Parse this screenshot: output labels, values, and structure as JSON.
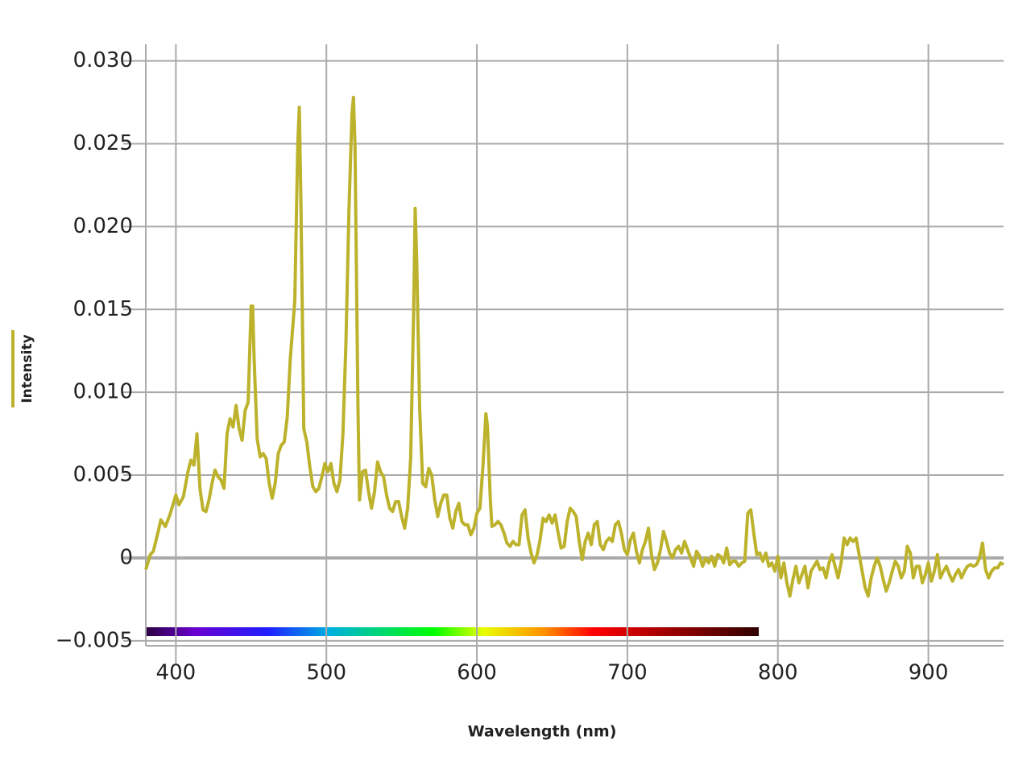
{
  "chart_data": {
    "type": "line",
    "x_label": "Wavelength (nm)",
    "xlim": [
      380,
      950
    ],
    "ylim": [
      -0.0053,
      0.031
    ],
    "xticks": [
      400,
      500,
      600,
      700,
      800,
      900
    ],
    "yticks": [
      {
        "value": -0.005,
        "label": "−0.005"
      },
      0,
      0.005,
      {
        "value": 0.01,
        "label": "0.010"
      },
      0.015,
      {
        "value": 0.02,
        "label": "0.020"
      },
      0.025,
      {
        "value": 0.03,
        "label": "0.030"
      }
    ],
    "grid": true,
    "legend": "left",
    "x": [
      380,
      383,
      385,
      388,
      390,
      393,
      396,
      400,
      402,
      405,
      408,
      410,
      412,
      414,
      416,
      418,
      420,
      422,
      424,
      426,
      428,
      430,
      432,
      434,
      436,
      438,
      440,
      442,
      444,
      446,
      448,
      450,
      451,
      452,
      454,
      456,
      458,
      460,
      462,
      464,
      466,
      468,
      470,
      472,
      474,
      476,
      479,
      481,
      482,
      483,
      485,
      487,
      489,
      491,
      493,
      495,
      497,
      499,
      501,
      503,
      505,
      507,
      509,
      511,
      513,
      515,
      517,
      518,
      519,
      521,
      522,
      524,
      526,
      528,
      530,
      532,
      534,
      536,
      538,
      540,
      542,
      544,
      546,
      548,
      550,
      552,
      554,
      556,
      558,
      559,
      560,
      562,
      564,
      566,
      568,
      570,
      572,
      574,
      576,
      578,
      580,
      582,
      584,
      586,
      588,
      590,
      592,
      594,
      596,
      598,
      600,
      602,
      604,
      606,
      607,
      609,
      610,
      612,
      614,
      616,
      618,
      620,
      622,
      624,
      626,
      628,
      630,
      632,
      634,
      636,
      638,
      640,
      642,
      644,
      646,
      648,
      650,
      652,
      654,
      656,
      658,
      660,
      662,
      664,
      666,
      668,
      670,
      672,
      674,
      676,
      678,
      680,
      682,
      684,
      686,
      688,
      690,
      692,
      694,
      696,
      698,
      700,
      702,
      704,
      706,
      708,
      710,
      712,
      714,
      716,
      718,
      720,
      722,
      724,
      726,
      728,
      730,
      732,
      734,
      736,
      738,
      740,
      742,
      744,
      746,
      748,
      750,
      752,
      754,
      756,
      758,
      760,
      762,
      764,
      766,
      768,
      770,
      772,
      774,
      776,
      778,
      780,
      782,
      784,
      786,
      788,
      790,
      792,
      794,
      796,
      798,
      800,
      802,
      804,
      806,
      808,
      810,
      812,
      814,
      816,
      818,
      820,
      822,
      824,
      826,
      828,
      830,
      832,
      834,
      836,
      838,
      840,
      842,
      844,
      846,
      848,
      850,
      852,
      854,
      856,
      858,
      860,
      862,
      864,
      866,
      868,
      870,
      872,
      874,
      876,
      878,
      880,
      882,
      884,
      886,
      888,
      890,
      892,
      894,
      896,
      898,
      900,
      902,
      904,
      906,
      908,
      910,
      912,
      914,
      916,
      918,
      920,
      922,
      924,
      926,
      928,
      930,
      932,
      934,
      936,
      938,
      940,
      942,
      944,
      946,
      948,
      950
    ],
    "series": [
      {
        "name": "Intensity",
        "color": "#bcb22c",
        "values": [
          -0.0007,
          0.0002,
          0.0004,
          0.0015,
          0.0023,
          0.0019,
          0.0026,
          0.0038,
          0.0032,
          0.0037,
          0.0052,
          0.0059,
          0.0056,
          0.0075,
          0.0042,
          0.0029,
          0.0028,
          0.0035,
          0.0045,
          0.0053,
          0.0049,
          0.0047,
          0.0042,
          0.0075,
          0.0084,
          0.0079,
          0.0092,
          0.0078,
          0.0071,
          0.0089,
          0.0094,
          0.0152,
          0.0152,
          0.012,
          0.0072,
          0.0061,
          0.0063,
          0.006,
          0.0045,
          0.0036,
          0.0045,
          0.0063,
          0.0068,
          0.007,
          0.0085,
          0.012,
          0.0155,
          0.025,
          0.0272,
          0.022,
          0.0078,
          0.007,
          0.0055,
          0.0043,
          0.004,
          0.0042,
          0.0049,
          0.0057,
          0.0052,
          0.0057,
          0.0045,
          0.004,
          0.0047,
          0.0075,
          0.013,
          0.021,
          0.0268,
          0.0278,
          0.025,
          0.009,
          0.0035,
          0.0052,
          0.0053,
          0.004,
          0.003,
          0.004,
          0.0058,
          0.0052,
          0.0049,
          0.0038,
          0.003,
          0.0028,
          0.0034,
          0.0034,
          0.0025,
          0.0018,
          0.003,
          0.006,
          0.015,
          0.0211,
          0.018,
          0.009,
          0.0045,
          0.0043,
          0.0054,
          0.005,
          0.0035,
          0.0025,
          0.0033,
          0.0038,
          0.0038,
          0.0024,
          0.0018,
          0.0028,
          0.0033,
          0.0022,
          0.002,
          0.002,
          0.0014,
          0.0018,
          0.0027,
          0.003,
          0.0055,
          0.0087,
          0.008,
          0.0034,
          0.0019,
          0.002,
          0.0022,
          0.002,
          0.0015,
          0.0009,
          0.0007,
          0.001,
          0.0008,
          0.0008,
          0.0026,
          0.0029,
          0.0012,
          0.0003,
          -0.0003,
          0.0002,
          0.0011,
          0.0024,
          0.0022,
          0.0026,
          0.0021,
          0.0026,
          0.0015,
          0.0006,
          0.0007,
          0.0022,
          0.003,
          0.0028,
          0.0025,
          0.001,
          -0.0001,
          0.001,
          0.0015,
          0.0008,
          0.002,
          0.0022,
          0.0008,
          0.0005,
          0.001,
          0.0012,
          0.001,
          0.002,
          0.0022,
          0.0015,
          0.0005,
          0.0002,
          0.0011,
          0.0015,
          0.0004,
          -0.0003,
          0.0005,
          0.001,
          0.0018,
          0.0002,
          -0.0007,
          -0.0003,
          0.0005,
          0.0016,
          0.001,
          0.0003,
          0,
          0.0005,
          0.0007,
          0.0003,
          0.001,
          0.0005,
          0,
          -0.0005,
          0.0004,
          0.0001,
          -0.0005,
          0,
          -0.0003,
          0.0001,
          -0.0005,
          0.0002,
          0.0001,
          -0.0003,
          0.0006,
          -0.0004,
          -0.0002,
          -0.0002,
          -0.0005,
          -0.0003,
          -0.0002,
          0.0027,
          0.0029,
          0.0015,
          0.0002,
          0.0003,
          -0.0002,
          0.0003,
          -0.0005,
          -0.0003,
          -0.0008,
          0.0001,
          -0.0012,
          -0.0003,
          -0.0015,
          -0.0023,
          -0.0013,
          -0.0005,
          -0.0015,
          -0.001,
          -0.0005,
          -0.0018,
          -0.0008,
          -0.0005,
          -0.0002,
          -0.0007,
          -0.0006,
          -0.0012,
          -0.0003,
          0.0002,
          -0.0005,
          -0.0012,
          -0.0003,
          0.0012,
          0.0008,
          0.0012,
          0.001,
          0.0012,
          0.0002,
          -0.0008,
          -0.0018,
          -0.0023,
          -0.0012,
          -0.0005,
          0,
          -0.0005,
          -0.0013,
          -0.002,
          -0.0015,
          -0.0008,
          -0.0002,
          -0.0005,
          -0.0012,
          -0.0008,
          0.0007,
          0.0003,
          -0.0012,
          -0.0005,
          -0.0005,
          -0.0015,
          -0.001,
          -0.0003,
          -0.0014,
          -0.0008,
          0.0002,
          -0.0012,
          -0.0008,
          -0.0005,
          -0.001,
          -0.0014,
          -0.001,
          -0.0007,
          -0.0012,
          -0.0008,
          -0.0005,
          -0.0004,
          -0.0005,
          -0.0004,
          0,
          0.0009,
          -0.0007,
          -0.0012,
          -0.0008,
          -0.0006,
          -0.0006,
          -0.0003,
          -0.0004
        ]
      }
    ]
  }
}
